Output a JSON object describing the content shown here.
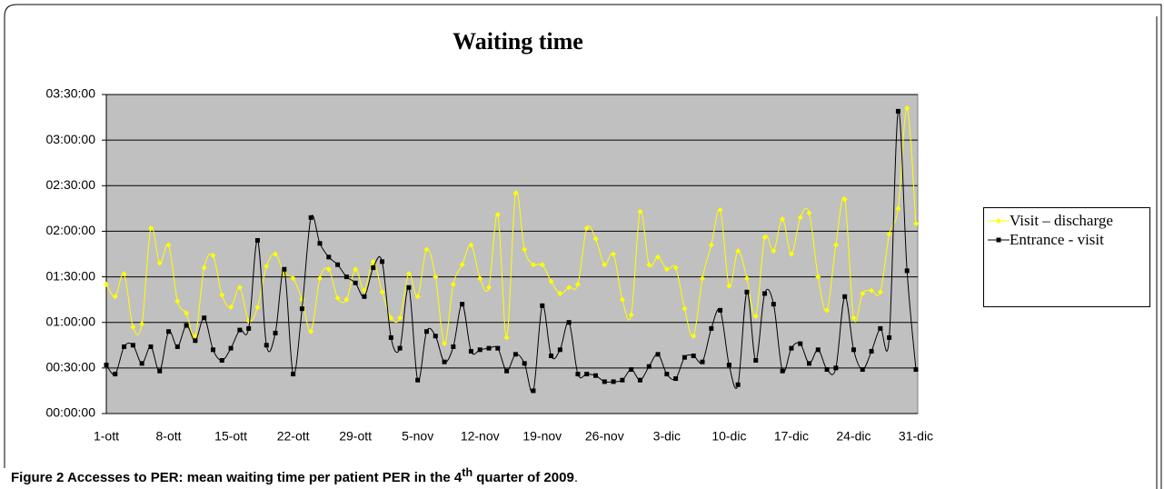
{
  "chart_data": {
    "type": "line",
    "title": "Waiting time",
    "categories": [
      "1-ott",
      null,
      null,
      null,
      null,
      null,
      null,
      "8-ott",
      null,
      null,
      null,
      null,
      null,
      null,
      "15-ott",
      null,
      null,
      null,
      null,
      null,
      null,
      "22-ott",
      null,
      null,
      null,
      null,
      null,
      null,
      "29-ott",
      null,
      null,
      null,
      null,
      null,
      null,
      "5-nov",
      null,
      null,
      null,
      null,
      null,
      null,
      "12-nov",
      null,
      null,
      null,
      null,
      null,
      null,
      "19-nov",
      null,
      null,
      null,
      null,
      null,
      null,
      "26-nov",
      null,
      null,
      null,
      null,
      null,
      null,
      "3-dic",
      null,
      null,
      null,
      null,
      null,
      null,
      "10-dic",
      null,
      null,
      null,
      null,
      null,
      null,
      "17-dic",
      null,
      null,
      null,
      null,
      null,
      null,
      "24-dic",
      null,
      null,
      null,
      null,
      null,
      null,
      "31-dic"
    ],
    "series": [
      {
        "name": "Visit – discharge",
        "color": "#ffff00",
        "marker": "diamond",
        "values": [
          85,
          77,
          92,
          57,
          59,
          122,
          99,
          111,
          74,
          66,
          51,
          96,
          104,
          78,
          70,
          83,
          61,
          70,
          97,
          105,
          92,
          89,
          75,
          54,
          89,
          95,
          76,
          75,
          95,
          81,
          100,
          80,
          63,
          63,
          92,
          77,
          108,
          90,
          46,
          85,
          98,
          111,
          89,
          83,
          131,
          50,
          145,
          108,
          98,
          98,
          87,
          79,
          83,
          85,
          122,
          115,
          98,
          105,
          75,
          65,
          133,
          98,
          103,
          95,
          96,
          69,
          51,
          89,
          111,
          134,
          84,
          107,
          89,
          64,
          116,
          107,
          128,
          105,
          129,
          132,
          90,
          68,
          111,
          141,
          63,
          79,
          81,
          80,
          118,
          135,
          201,
          125
        ]
      },
      {
        "name": "Entrance - visit",
        "color": "#000000",
        "marker": "square",
        "values": [
          32,
          26,
          44,
          45,
          33,
          44,
          28,
          54,
          44,
          58,
          48,
          63,
          42,
          35,
          43,
          55,
          56,
          114,
          45,
          53,
          95,
          26,
          69,
          129,
          112,
          103,
          98,
          90,
          86,
          77,
          96,
          100,
          50,
          43,
          83,
          22,
          54,
          51,
          34,
          44,
          72,
          41,
          42,
          43,
          43,
          28,
          39,
          33,
          15,
          71,
          38,
          42,
          60,
          26,
          26,
          25,
          21,
          21,
          22,
          29,
          22,
          31,
          39,
          26,
          23,
          37,
          38,
          34,
          56,
          68,
          32,
          19,
          80,
          35,
          79,
          72,
          28,
          43,
          46,
          33,
          42,
          29,
          30,
          77,
          42,
          29,
          41,
          56,
          50,
          199,
          94,
          29
        ]
      }
    ],
    "ylim": [
      0,
      210
    ],
    "yticks": [
      {
        "value": 0,
        "label": "00:00:00"
      },
      {
        "value": 30,
        "label": "00:30:00"
      },
      {
        "value": 60,
        "label": "01:00:00"
      },
      {
        "value": 90,
        "label": "01:30:00"
      },
      {
        "value": 120,
        "label": "02:00:00"
      },
      {
        "value": 150,
        "label": "02:30:00"
      },
      {
        "value": 180,
        "label": "03:00:00"
      },
      {
        "value": 210,
        "label": "03:30:00"
      }
    ],
    "grid": true,
    "plot_background": "#c0c0c0",
    "legend": "right"
  },
  "caption": {
    "label": "Figure 2",
    "text": "Accesses to PER: mean waiting time per patient PER in the 4",
    "sup": "th",
    "rest": " quarter of 2009",
    "end": "."
  }
}
